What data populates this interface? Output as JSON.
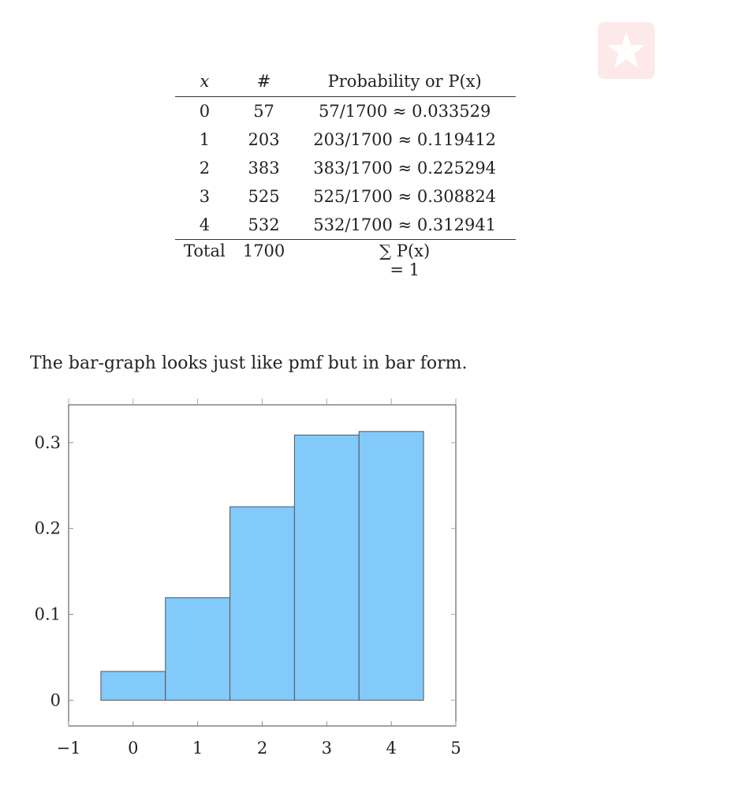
{
  "logo": {
    "icon": "star-badge-icon",
    "color": "#fde9e9"
  },
  "table": {
    "headers": [
      "x",
      "#",
      "Probability or P(x)"
    ],
    "rows": [
      {
        "x": "0",
        "count": "57",
        "prob": "57/1700 ≈ 0.033529"
      },
      {
        "x": "1",
        "count": "203",
        "prob": "203/1700 ≈ 0.119412"
      },
      {
        "x": "2",
        "count": "383",
        "prob": "383/1700 ≈ 0.225294"
      },
      {
        "x": "3",
        "count": "525",
        "prob": "525/1700 ≈ 0.308824"
      },
      {
        "x": "4",
        "count": "532",
        "prob": "532/1700 ≈ 0.312941"
      }
    ],
    "total_label": "Total",
    "total_count": "1700",
    "total_prob_line1": "∑ P(x)",
    "total_prob_line2": "= 1"
  },
  "caption": "The bar-graph looks just like pmf but in bar form.",
  "chart_data": {
    "type": "bar",
    "categories": [
      0,
      1,
      2,
      3,
      4
    ],
    "values": [
      0.033529,
      0.119412,
      0.225294,
      0.308824,
      0.312941
    ],
    "xlim": [
      -1,
      5
    ],
    "ylim": [
      -0.03,
      0.344
    ],
    "xticks": [
      "−1",
      "0",
      "1",
      "2",
      "3",
      "4",
      "5"
    ],
    "yticks": [
      "0",
      "0.1",
      "0.2",
      "0.3"
    ],
    "bar_width": 1,
    "bar_color": "#82cafa",
    "grid": false
  }
}
